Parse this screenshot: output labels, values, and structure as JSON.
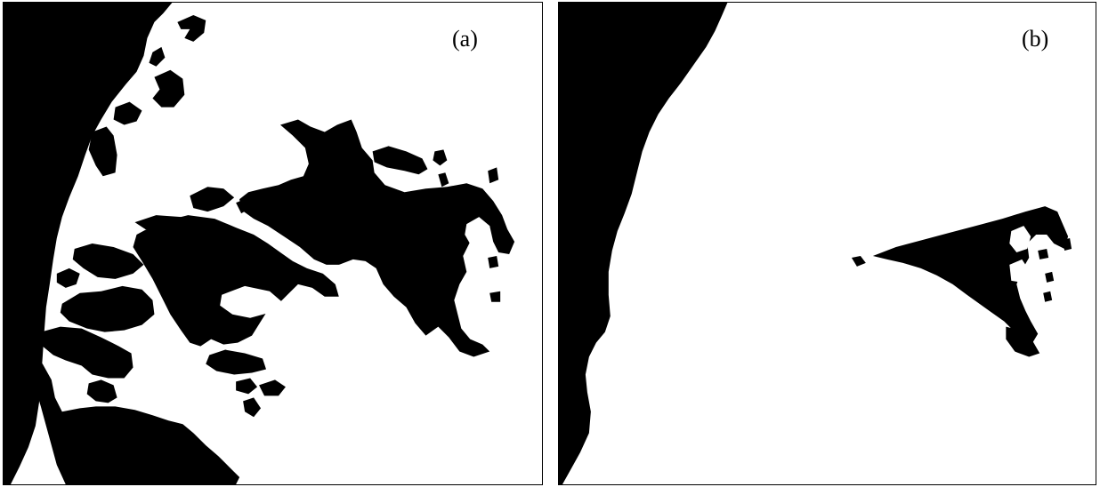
{
  "panels": [
    {
      "id": "a",
      "label": "(a)"
    },
    {
      "id": "b",
      "label": "(b)"
    }
  ],
  "colors": {
    "land": "#000000",
    "water": "#ffffff",
    "border": "#000000"
  }
}
